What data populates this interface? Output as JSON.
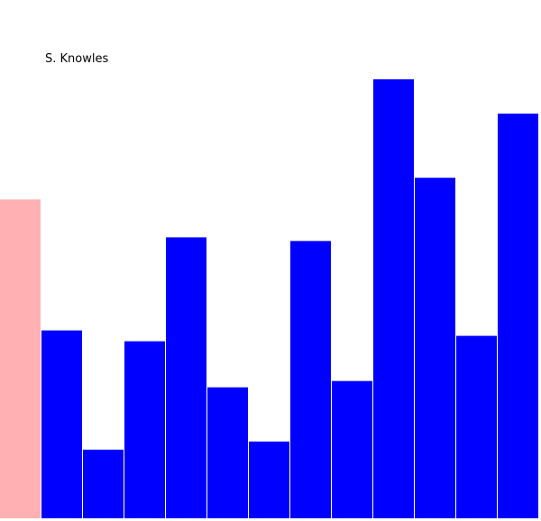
{
  "chart_data": {
    "type": "bar",
    "title": "S. Knowles",
    "categories": [
      "",
      "",
      "",
      "",
      "",
      "",
      "",
      "",
      "",
      "",
      "",
      "",
      ""
    ],
    "values": [
      353,
      208,
      76,
      196,
      311,
      145,
      85,
      307,
      152,
      486,
      377,
      202,
      448
    ],
    "highlight_index": 0,
    "colors": {
      "highlight": "#ffb0b3",
      "bar": "#0000ff"
    },
    "xlabel": "",
    "ylabel": "",
    "ylim": [
      0,
      486
    ],
    "grid": false,
    "legend": "none"
  }
}
